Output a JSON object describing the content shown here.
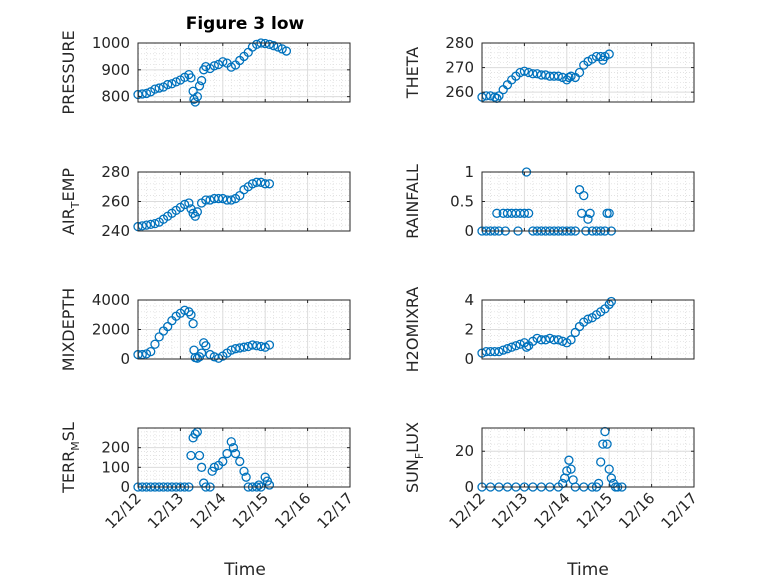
{
  "figure": {
    "title": "Figure 3 low",
    "marker_color": "#0072BD",
    "xlabel": "Time"
  },
  "chart_data": [
    {
      "type": "scatter",
      "id": "pressure",
      "ylabel_main": "PRESSURE",
      "ylabel_sub": "",
      "ylabel_tail": "",
      "ylim": [
        780,
        1000
      ],
      "yticks": [
        800,
        900,
        1000
      ],
      "xlim": [
        0,
        5
      ],
      "xticks": [
        "12/12",
        "12/13",
        "12/14",
        "12/15",
        "12/16",
        "12/17"
      ],
      "grid": true,
      "points": [
        [
          0,
          808
        ],
        [
          0.1,
          810
        ],
        [
          0.2,
          812
        ],
        [
          0.3,
          818
        ],
        [
          0.4,
          828
        ],
        [
          0.5,
          832
        ],
        [
          0.6,
          836
        ],
        [
          0.7,
          845
        ],
        [
          0.8,
          848
        ],
        [
          0.9,
          855
        ],
        [
          1.0,
          862
        ],
        [
          1.1,
          872
        ],
        [
          1.2,
          882
        ],
        [
          1.25,
          870
        ],
        [
          1.3,
          820
        ],
        [
          1.32,
          790
        ],
        [
          1.35,
          780
        ],
        [
          1.4,
          800
        ],
        [
          1.45,
          840
        ],
        [
          1.5,
          860
        ],
        [
          1.55,
          900
        ],
        [
          1.6,
          912
        ],
        [
          1.7,
          905
        ],
        [
          1.8,
          915
        ],
        [
          1.9,
          920
        ],
        [
          2.0,
          930
        ],
        [
          2.1,
          925
        ],
        [
          2.2,
          910
        ],
        [
          2.3,
          918
        ],
        [
          2.4,
          935
        ],
        [
          2.5,
          950
        ],
        [
          2.6,
          965
        ],
        [
          2.7,
          985
        ],
        [
          2.8,
          995
        ],
        [
          2.9,
          1000
        ],
        [
          3.0,
          998
        ],
        [
          3.1,
          995
        ],
        [
          3.2,
          990
        ],
        [
          3.3,
          985
        ],
        [
          3.4,
          978
        ],
        [
          3.5,
          970
        ]
      ]
    },
    {
      "type": "scatter",
      "id": "theta",
      "ylabel_main": "THETA",
      "ylabel_sub": "",
      "ylabel_tail": "",
      "ylim": [
        256,
        280
      ],
      "yticks": [
        260,
        270,
        280
      ],
      "xlim": [
        0,
        5
      ],
      "xticks": [
        "12/12",
        "12/13",
        "12/14",
        "12/15",
        "12/16",
        "12/17"
      ],
      "grid": true,
      "points": [
        [
          0,
          258
        ],
        [
          0.1,
          258.5
        ],
        [
          0.2,
          258.5
        ],
        [
          0.3,
          258
        ],
        [
          0.35,
          257.5
        ],
        [
          0.4,
          258.5
        ],
        [
          0.5,
          261
        ],
        [
          0.6,
          263
        ],
        [
          0.7,
          265
        ],
        [
          0.8,
          266.5
        ],
        [
          0.9,
          268
        ],
        [
          1.0,
          268.5
        ],
        [
          1.1,
          268
        ],
        [
          1.2,
          267.5
        ],
        [
          1.3,
          267.5
        ],
        [
          1.4,
          267
        ],
        [
          1.5,
          267
        ],
        [
          1.6,
          266.5
        ],
        [
          1.7,
          266.5
        ],
        [
          1.8,
          266.5
        ],
        [
          1.9,
          266
        ],
        [
          2.0,
          265
        ],
        [
          2.05,
          266
        ],
        [
          2.1,
          266.5
        ],
        [
          2.2,
          266
        ],
        [
          2.3,
          268
        ],
        [
          2.4,
          271
        ],
        [
          2.5,
          272.5
        ],
        [
          2.6,
          273.5
        ],
        [
          2.7,
          274.5
        ],
        [
          2.8,
          274.5
        ],
        [
          2.85,
          273
        ],
        [
          2.9,
          274.5
        ],
        [
          3.0,
          275.5
        ]
      ]
    },
    {
      "type": "scatter",
      "id": "air_temp",
      "ylabel_main": "AIR",
      "ylabel_sub": "T",
      "ylabel_tail": "EMP",
      "ylim": [
        240,
        280
      ],
      "yticks": [
        240,
        260,
        280
      ],
      "xlim": [
        0,
        5
      ],
      "xticks": [
        "12/12",
        "12/13",
        "12/14",
        "12/15",
        "12/16",
        "12/17"
      ],
      "grid": true,
      "points": [
        [
          0,
          243
        ],
        [
          0.1,
          243.5
        ],
        [
          0.2,
          244
        ],
        [
          0.3,
          244.5
        ],
        [
          0.4,
          245
        ],
        [
          0.5,
          246
        ],
        [
          0.6,
          248
        ],
        [
          0.7,
          250
        ],
        [
          0.8,
          252
        ],
        [
          0.9,
          254
        ],
        [
          1.0,
          256
        ],
        [
          1.1,
          258
        ],
        [
          1.2,
          259
        ],
        [
          1.25,
          255
        ],
        [
          1.3,
          252
        ],
        [
          1.35,
          250
        ],
        [
          1.4,
          253
        ],
        [
          1.5,
          259
        ],
        [
          1.6,
          261
        ],
        [
          1.7,
          261
        ],
        [
          1.8,
          262
        ],
        [
          1.9,
          262
        ],
        [
          2.0,
          262
        ],
        [
          2.1,
          261
        ],
        [
          2.2,
          261
        ],
        [
          2.3,
          262
        ],
        [
          2.4,
          264
        ],
        [
          2.5,
          268
        ],
        [
          2.6,
          270
        ],
        [
          2.7,
          272
        ],
        [
          2.8,
          273
        ],
        [
          2.9,
          273
        ],
        [
          3.0,
          272
        ],
        [
          3.1,
          272
        ]
      ]
    },
    {
      "type": "scatter",
      "id": "rainfall",
      "ylabel_main": "RAINFALL",
      "ylabel_sub": "",
      "ylabel_tail": "",
      "ylim": [
        0,
        1
      ],
      "yticks": [
        0,
        0.5,
        1
      ],
      "xlim": [
        0,
        5
      ],
      "xticks": [
        "12/12",
        "12/13",
        "12/14",
        "12/15",
        "12/16",
        "12/17"
      ],
      "grid": true,
      "points": [
        [
          0,
          0
        ],
        [
          0.1,
          0
        ],
        [
          0.2,
          0
        ],
        [
          0.3,
          0
        ],
        [
          0.35,
          0.3
        ],
        [
          0.4,
          0
        ],
        [
          0.5,
          0.3
        ],
        [
          0.55,
          0
        ],
        [
          0.6,
          0.3
        ],
        [
          0.7,
          0.3
        ],
        [
          0.8,
          0.3
        ],
        [
          0.85,
          0
        ],
        [
          0.9,
          0.3
        ],
        [
          1.0,
          0.3
        ],
        [
          1.05,
          1.0
        ],
        [
          1.1,
          0.3
        ],
        [
          1.2,
          0
        ],
        [
          1.3,
          0
        ],
        [
          1.4,
          0
        ],
        [
          1.5,
          0
        ],
        [
          1.6,
          0
        ],
        [
          1.7,
          0
        ],
        [
          1.8,
          0
        ],
        [
          1.9,
          0
        ],
        [
          2.0,
          0
        ],
        [
          2.1,
          0
        ],
        [
          2.2,
          0
        ],
        [
          2.3,
          0.7
        ],
        [
          2.35,
          0.3
        ],
        [
          2.4,
          0.6
        ],
        [
          2.45,
          0
        ],
        [
          2.5,
          0.2
        ],
        [
          2.55,
          0.3
        ],
        [
          2.6,
          0
        ],
        [
          2.7,
          0
        ],
        [
          2.8,
          0
        ],
        [
          2.9,
          0
        ],
        [
          2.95,
          0.3
        ],
        [
          3.0,
          0.3
        ],
        [
          3.05,
          0
        ]
      ]
    },
    {
      "type": "scatter",
      "id": "mixdepth",
      "ylabel_main": "MIXDEPTH",
      "ylabel_sub": "",
      "ylabel_tail": "",
      "ylim": [
        0,
        4000
      ],
      "yticks": [
        0,
        2000,
        4000
      ],
      "xlim": [
        0,
        5
      ],
      "xticks": [
        "12/12",
        "12/13",
        "12/14",
        "12/15",
        "12/16",
        "12/17"
      ],
      "grid": true,
      "points": [
        [
          0,
          300
        ],
        [
          0.1,
          300
        ],
        [
          0.2,
          350
        ],
        [
          0.3,
          500
        ],
        [
          0.4,
          1000
        ],
        [
          0.5,
          1500
        ],
        [
          0.6,
          1900
        ],
        [
          0.7,
          2200
        ],
        [
          0.8,
          2600
        ],
        [
          0.9,
          2900
        ],
        [
          1.0,
          3100
        ],
        [
          1.1,
          3300
        ],
        [
          1.2,
          3200
        ],
        [
          1.25,
          3000
        ],
        [
          1.3,
          2400
        ],
        [
          1.32,
          600
        ],
        [
          1.35,
          100
        ],
        [
          1.4,
          50
        ],
        [
          1.45,
          150
        ],
        [
          1.5,
          400
        ],
        [
          1.55,
          1100
        ],
        [
          1.6,
          900
        ],
        [
          1.7,
          300
        ],
        [
          1.8,
          150
        ],
        [
          1.9,
          50
        ],
        [
          2.0,
          200
        ],
        [
          2.1,
          400
        ],
        [
          2.2,
          600
        ],
        [
          2.3,
          700
        ],
        [
          2.4,
          750
        ],
        [
          2.5,
          800
        ],
        [
          2.6,
          850
        ],
        [
          2.7,
          950
        ],
        [
          2.8,
          900
        ],
        [
          2.9,
          850
        ],
        [
          3.0,
          800
        ],
        [
          3.1,
          950
        ]
      ]
    },
    {
      "type": "scatter",
      "id": "h2omixra",
      "ylabel_main": "H2OMIXRA",
      "ylabel_sub": "",
      "ylabel_tail": "",
      "ylim": [
        0,
        4
      ],
      "yticks": [
        0,
        2,
        4
      ],
      "xlim": [
        0,
        5
      ],
      "xticks": [
        "12/12",
        "12/13",
        "12/14",
        "12/15",
        "12/16",
        "12/17"
      ],
      "grid": true,
      "points": [
        [
          0,
          0.4
        ],
        [
          0.1,
          0.5
        ],
        [
          0.2,
          0.5
        ],
        [
          0.3,
          0.5
        ],
        [
          0.4,
          0.5
        ],
        [
          0.5,
          0.6
        ],
        [
          0.6,
          0.7
        ],
        [
          0.7,
          0.8
        ],
        [
          0.8,
          0.9
        ],
        [
          0.9,
          1.0
        ],
        [
          1.0,
          1.1
        ],
        [
          1.05,
          0.8
        ],
        [
          1.1,
          0.9
        ],
        [
          1.2,
          1.2
        ],
        [
          1.3,
          1.4
        ],
        [
          1.4,
          1.3
        ],
        [
          1.5,
          1.3
        ],
        [
          1.6,
          1.4
        ],
        [
          1.7,
          1.3
        ],
        [
          1.8,
          1.3
        ],
        [
          1.9,
          1.2
        ],
        [
          2.0,
          1.1
        ],
        [
          2.1,
          1.3
        ],
        [
          2.2,
          1.8
        ],
        [
          2.3,
          2.2
        ],
        [
          2.4,
          2.5
        ],
        [
          2.5,
          2.7
        ],
        [
          2.6,
          2.8
        ],
        [
          2.7,
          3.0
        ],
        [
          2.8,
          3.2
        ],
        [
          2.9,
          3.4
        ],
        [
          3.0,
          3.7
        ],
        [
          3.05,
          3.9
        ]
      ]
    },
    {
      "type": "scatter",
      "id": "terr_msl",
      "ylabel_main": "TERR",
      "ylabel_sub": "M",
      "ylabel_tail": "SL",
      "ylim": [
        0,
        300
      ],
      "yticks": [
        0,
        100,
        200
      ],
      "xlim": [
        0,
        5
      ],
      "xticks": [
        "12/12",
        "12/13",
        "12/14",
        "12/15",
        "12/16",
        "12/17"
      ],
      "grid": true,
      "points": [
        [
          0,
          0
        ],
        [
          0.1,
          0
        ],
        [
          0.2,
          0
        ],
        [
          0.3,
          0
        ],
        [
          0.4,
          0
        ],
        [
          0.5,
          0
        ],
        [
          0.6,
          0
        ],
        [
          0.7,
          0
        ],
        [
          0.8,
          0
        ],
        [
          0.9,
          0
        ],
        [
          1.0,
          0
        ],
        [
          1.1,
          0
        ],
        [
          1.2,
          0
        ],
        [
          1.25,
          160
        ],
        [
          1.3,
          250
        ],
        [
          1.35,
          270
        ],
        [
          1.4,
          280
        ],
        [
          1.45,
          160
        ],
        [
          1.5,
          100
        ],
        [
          1.55,
          20
        ],
        [
          1.6,
          0
        ],
        [
          1.7,
          0
        ],
        [
          1.75,
          80
        ],
        [
          1.8,
          100
        ],
        [
          1.9,
          110
        ],
        [
          2.0,
          130
        ],
        [
          2.1,
          170
        ],
        [
          2.2,
          230
        ],
        [
          2.25,
          200
        ],
        [
          2.3,
          170
        ],
        [
          2.4,
          130
        ],
        [
          2.5,
          80
        ],
        [
          2.55,
          50
        ],
        [
          2.6,
          0
        ],
        [
          2.7,
          0
        ],
        [
          2.8,
          0
        ],
        [
          2.85,
          10
        ],
        [
          2.9,
          0
        ],
        [
          3.0,
          50
        ],
        [
          3.05,
          30
        ],
        [
          3.1,
          10
        ]
      ]
    },
    {
      "type": "scatter",
      "id": "sun_flux",
      "ylabel_main": "SUN",
      "ylabel_sub": "F",
      "ylabel_tail": "LUX",
      "ylim": [
        0,
        33
      ],
      "yticks": [
        0,
        20
      ],
      "xlim": [
        0,
        5
      ],
      "xticks": [
        "12/12",
        "12/13",
        "12/14",
        "12/15",
        "12/16",
        "12/17"
      ],
      "grid": true,
      "points": [
        [
          0,
          0
        ],
        [
          0.2,
          0
        ],
        [
          0.4,
          0
        ],
        [
          0.6,
          0
        ],
        [
          0.8,
          0
        ],
        [
          1.0,
          0
        ],
        [
          1.2,
          0
        ],
        [
          1.4,
          0
        ],
        [
          1.6,
          0
        ],
        [
          1.8,
          0
        ],
        [
          1.9,
          2
        ],
        [
          1.95,
          5
        ],
        [
          2.0,
          9
        ],
        [
          2.05,
          15
        ],
        [
          2.1,
          10
        ],
        [
          2.15,
          4
        ],
        [
          2.2,
          0
        ],
        [
          2.4,
          0
        ],
        [
          2.6,
          0
        ],
        [
          2.7,
          0
        ],
        [
          2.75,
          2
        ],
        [
          2.8,
          14
        ],
        [
          2.85,
          24
        ],
        [
          2.9,
          31
        ],
        [
          2.95,
          24
        ],
        [
          3.0,
          10
        ],
        [
          3.05,
          5
        ],
        [
          3.1,
          2
        ],
        [
          3.15,
          0
        ],
        [
          3.2,
          0
        ],
        [
          3.3,
          0
        ]
      ]
    }
  ]
}
